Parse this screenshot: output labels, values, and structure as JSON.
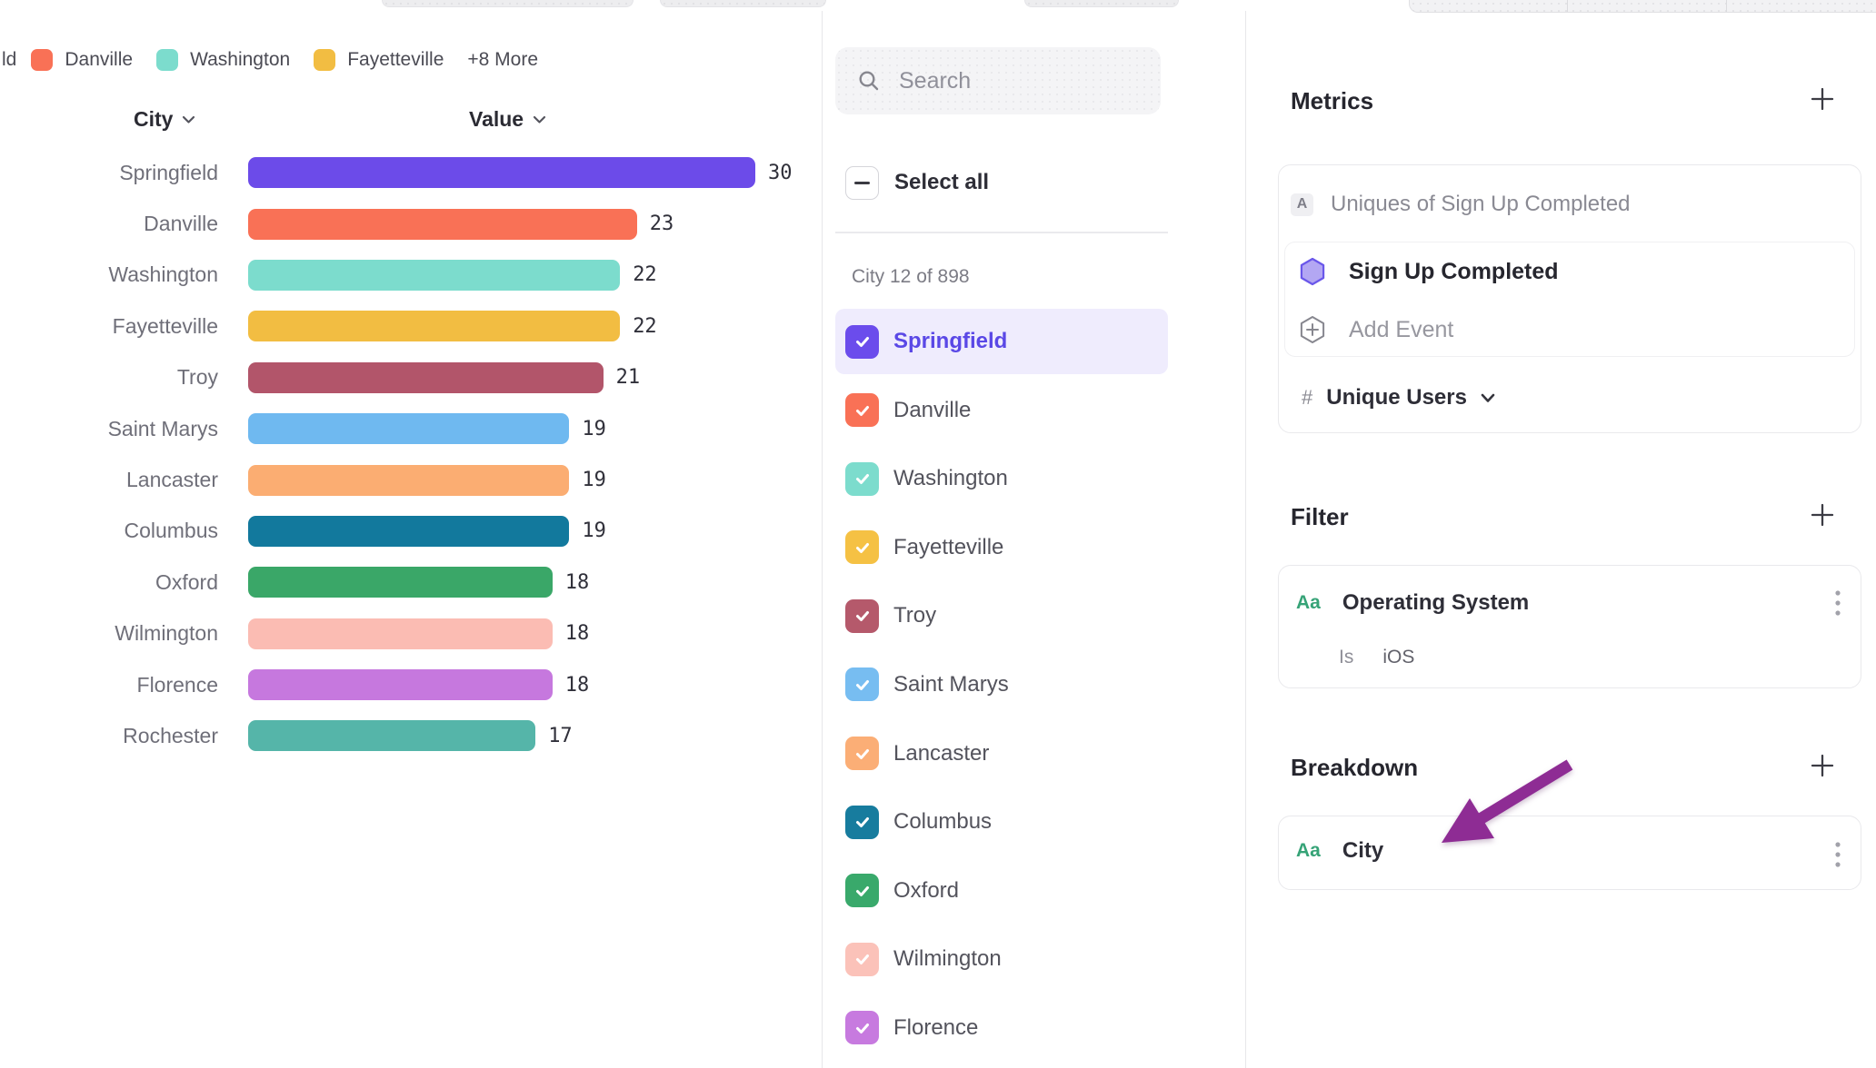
{
  "legend": {
    "truncated_label": "ld",
    "items": [
      {
        "label": "Danville",
        "color": "#F97156"
      },
      {
        "label": "Washington",
        "color": "#7CDCCD"
      },
      {
        "label": "Fayetteville",
        "color": "#F2BD42"
      }
    ],
    "more": "+8 More"
  },
  "chart_data": {
    "type": "bar",
    "orientation": "horizontal",
    "columns": {
      "category": "City",
      "value": "Value"
    },
    "categories": [
      "Springfield",
      "Danville",
      "Washington",
      "Fayetteville",
      "Troy",
      "Saint Marys",
      "Lancaster",
      "Columbus",
      "Oxford",
      "Wilmington",
      "Florence",
      "Rochester"
    ],
    "values": [
      30,
      23,
      22,
      22,
      21,
      19,
      19,
      19,
      18,
      18,
      18,
      17
    ],
    "colors": [
      "#6C4BE9",
      "#F97156",
      "#7CDCCD",
      "#F2BD42",
      "#B2556A",
      "#6FB9F0",
      "#FBAD72",
      "#12799D",
      "#3AA768",
      "#FBBCB3",
      "#C678DE",
      "#55B5A9"
    ],
    "xlim": [
      0,
      30
    ],
    "grid": false,
    "value_labels": true,
    "sortable_columns": true
  },
  "city_selector": {
    "search_placeholder": "Search",
    "select_all_label": "Select all",
    "select_all_state": "indeterminate",
    "counter": "City 12 of 898",
    "items": [
      {
        "label": "Springfield",
        "color": "#6B4CEC",
        "checked": true,
        "highlighted": true
      },
      {
        "label": "Danville",
        "color": "#F97156",
        "checked": true,
        "highlighted": false
      },
      {
        "label": "Washington",
        "color": "#7CDCCD",
        "checked": true,
        "highlighted": false
      },
      {
        "label": "Fayetteville",
        "color": "#F5C144",
        "checked": true,
        "highlighted": false
      },
      {
        "label": "Troy",
        "color": "#B5596B",
        "checked": true,
        "highlighted": false
      },
      {
        "label": "Saint Marys",
        "color": "#77BDF1",
        "checked": true,
        "highlighted": false
      },
      {
        "label": "Lancaster",
        "color": "#FBAE76",
        "checked": true,
        "highlighted": false
      },
      {
        "label": "Columbus",
        "color": "#177C9E",
        "checked": true,
        "highlighted": false
      },
      {
        "label": "Oxford",
        "color": "#39A96B",
        "checked": true,
        "highlighted": false
      },
      {
        "label": "Wilmington",
        "color": "#FBC2B9",
        "checked": true,
        "highlighted": false
      },
      {
        "label": "Florence",
        "color": "#C77ADF",
        "checked": true,
        "highlighted": false
      }
    ]
  },
  "metrics": {
    "title": "Metrics",
    "metric_badge": "A",
    "metric_summary": "Uniques of Sign Up Completed",
    "event_name": "Sign Up Completed",
    "add_event_label": "Add Event",
    "measurement_prefix": "#",
    "measurement": "Unique Users"
  },
  "filter": {
    "title": "Filter",
    "property_type_badge": "Aa",
    "property_name": "Operating System",
    "operator": "Is",
    "value": "iOS"
  },
  "breakdown": {
    "title": "Breakdown",
    "property_type_badge": "Aa",
    "property_name": "City",
    "annotation_arrow_color": "#8E2C94"
  }
}
